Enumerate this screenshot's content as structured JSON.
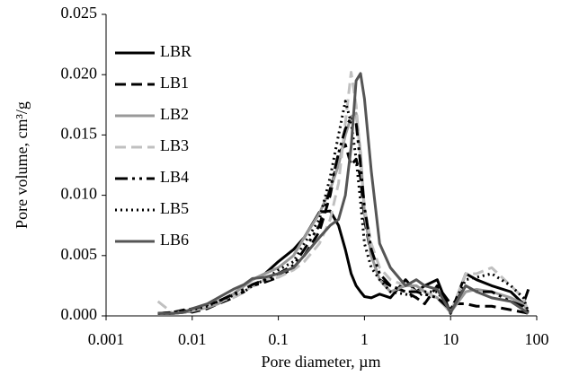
{
  "chart_data": {
    "type": "line",
    "x_label": "Pore diameter, µm",
    "y_label": "Pore volume, cm³/g",
    "x": [
      0.004,
      0.006,
      0.008,
      0.01,
      0.015,
      0.02,
      0.03,
      0.04,
      0.05,
      0.07,
      0.1,
      0.15,
      0.2,
      0.3,
      0.4,
      0.5,
      0.6,
      0.7,
      0.8,
      0.9,
      1,
      1.2,
      1.5,
      2,
      3,
      4,
      5,
      7,
      10,
      15,
      20,
      30,
      50,
      70,
      80
    ],
    "x_scale": "log",
    "xlim": [
      0.001,
      100
    ],
    "xticks": [
      0.001,
      0.01,
      0.1,
      1,
      10,
      100
    ],
    "ylim": [
      0,
      0.025
    ],
    "yticks": [
      {
        "value": 0,
        "label": "0.000"
      },
      {
        "value": 0.005,
        "label": "0.005"
      },
      {
        "value": 0.01,
        "label": "0.010"
      },
      {
        "value": 0.015,
        "label": "0.015"
      },
      {
        "value": 0.02,
        "label": "0.020"
      },
      {
        "value": 0.025,
        "label": "0.025"
      }
    ],
    "grid": false,
    "legend": "upper left",
    "series": [
      {
        "name": "LBR",
        "color": "#000000",
        "line_style": "solid",
        "values": [
          0.0002,
          0.0002,
          0.0003,
          0.0004,
          0.0008,
          0.0012,
          0.0018,
          0.0025,
          0.003,
          0.0035,
          0.0045,
          0.0055,
          0.0065,
          0.0086,
          0.0087,
          0.0075,
          0.0055,
          0.0035,
          0.0025,
          0.002,
          0.0016,
          0.0015,
          0.0018,
          0.0015,
          0.003,
          0.002,
          0.0025,
          0.003,
          0.0002,
          0.0035,
          0.003,
          0.0025,
          0.002,
          0.001,
          0.0022
        ]
      },
      {
        "name": "LB1",
        "color": "#000000",
        "line_style": "dashed",
        "values": [
          0.0002,
          0.0003,
          0.0005,
          0.0003,
          0.0006,
          0.001,
          0.0015,
          0.002,
          0.0025,
          0.0028,
          0.0032,
          0.004,
          0.005,
          0.007,
          0.01,
          0.0135,
          0.0142,
          0.0125,
          0.013,
          0.0115,
          0.008,
          0.005,
          0.003,
          0.0025,
          0.002,
          0.0015,
          0.001,
          0.0025,
          0.001,
          0.001,
          0.0008,
          0.0008,
          0.0005,
          0.0003,
          0.0002
        ]
      },
      {
        "name": "LB2",
        "color": "#999999",
        "line_style": "solid",
        "values": [
          0.0002,
          0.0002,
          0.0003,
          0.0004,
          0.0007,
          0.001,
          0.0018,
          0.0025,
          0.003,
          0.0035,
          0.004,
          0.005,
          0.0065,
          0.0085,
          0.0105,
          0.0125,
          0.015,
          0.0165,
          0.0168,
          0.0135,
          0.0085,
          0.005,
          0.003,
          0.002,
          0.0025,
          0.0025,
          0.002,
          0.0015,
          0.0003,
          0.002,
          0.0022,
          0.002,
          0.0015,
          0.001,
          0.0003
        ]
      },
      {
        "name": "LB3",
        "color": "#c0c0c0",
        "line_style": "dashed",
        "values": [
          0.0012,
          0.0002,
          0.0004,
          0.0005,
          0.0008,
          0.0012,
          0.0015,
          0.002,
          0.0025,
          0.003,
          0.0032,
          0.0038,
          0.0045,
          0.006,
          0.008,
          0.011,
          0.016,
          0.0202,
          0.0175,
          0.013,
          0.009,
          0.006,
          0.004,
          0.003,
          0.0025,
          0.002,
          0.002,
          0.0015,
          0.0003,
          0.0035,
          0.0035,
          0.004,
          0.0025,
          0.0015,
          0.0003
        ]
      },
      {
        "name": "LB4",
        "color": "#000000",
        "line_style": "dash-dot-dot",
        "values": [
          0.0002,
          0.0003,
          0.0004,
          0.0006,
          0.0009,
          0.0012,
          0.0018,
          0.0022,
          0.0026,
          0.003,
          0.0035,
          0.0042,
          0.0055,
          0.0075,
          0.0105,
          0.0135,
          0.0155,
          0.0165,
          0.016,
          0.0125,
          0.009,
          0.0055,
          0.0035,
          0.0025,
          0.002,
          0.002,
          0.0018,
          0.0015,
          0.0005,
          0.0025,
          0.002,
          0.002,
          0.0012,
          0.0008,
          0.0003
        ]
      },
      {
        "name": "LB5",
        "color": "#000000",
        "line_style": "dotted",
        "values": [
          0.0002,
          0.0002,
          0.0004,
          0.0005,
          0.0008,
          0.0012,
          0.0017,
          0.002,
          0.0025,
          0.003,
          0.0038,
          0.0045,
          0.006,
          0.008,
          0.0115,
          0.015,
          0.0178,
          0.016,
          0.013,
          0.0095,
          0.006,
          0.004,
          0.003,
          0.002,
          0.0018,
          0.0015,
          0.002,
          0.002,
          0.0005,
          0.003,
          0.0032,
          0.0035,
          0.0025,
          0.0015,
          0.0003
        ]
      },
      {
        "name": "LB6",
        "color": "#555555",
        "line_style": "solid",
        "values": [
          0.0002,
          0.0002,
          0.0003,
          0.0006,
          0.001,
          0.0015,
          0.0022,
          0.0026,
          0.0031,
          0.0032,
          0.0035,
          0.004,
          0.005,
          0.0065,
          0.0075,
          0.008,
          0.01,
          0.014,
          0.0195,
          0.0201,
          0.018,
          0.012,
          0.006,
          0.004,
          0.0025,
          0.003,
          0.0025,
          0.0022,
          0.0003,
          0.0025,
          0.002,
          0.0015,
          0.0012,
          0.0005,
          0.0002
        ]
      }
    ]
  }
}
